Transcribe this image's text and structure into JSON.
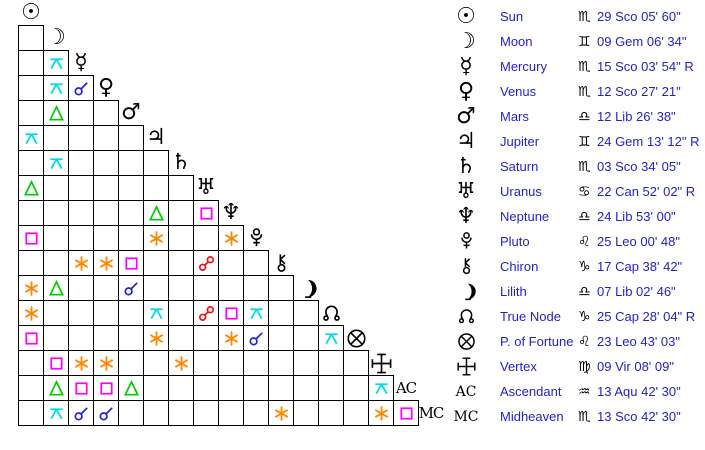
{
  "colors": {
    "link_text": "#2222cc",
    "glyph": "#000000",
    "grid_line": "#000000",
    "background": "#ffffff",
    "aspects": {
      "conjunction": "#2222dd",
      "sextile": "#ff8800",
      "square": "#ff00ff",
      "trine": "#00cc00",
      "opposition": "#ee1111",
      "quincunx": "#00dde8"
    }
  },
  "grid": {
    "rows": [
      {
        "glyph": "sun",
        "label": "Sun",
        "aspects": []
      },
      {
        "glyph": "moon",
        "label": "Moon",
        "aspects": [
          ""
        ]
      },
      {
        "glyph": "mercury",
        "label": "Mercury",
        "aspects": [
          "",
          "quincunx"
        ]
      },
      {
        "glyph": "venus",
        "label": "Venus",
        "aspects": [
          "",
          "quincunx",
          "conjunction"
        ]
      },
      {
        "glyph": "mars",
        "label": "Mars",
        "aspects": [
          "",
          "trine",
          "",
          ""
        ]
      },
      {
        "glyph": "jupiter",
        "label": "Jupiter",
        "aspects": [
          "quincunx",
          "",
          "",
          "",
          ""
        ]
      },
      {
        "glyph": "saturn",
        "label": "Saturn",
        "aspects": [
          "",
          "quincunx",
          "",
          "",
          "",
          ""
        ]
      },
      {
        "glyph": "uranus",
        "label": "Uranus",
        "aspects": [
          "trine",
          "",
          "",
          "",
          "",
          "",
          ""
        ]
      },
      {
        "glyph": "neptune",
        "label": "Neptune",
        "aspects": [
          "",
          "",
          "",
          "",
          "",
          "trine",
          "",
          "square"
        ]
      },
      {
        "glyph": "pluto",
        "label": "Pluto",
        "aspects": [
          "square",
          "",
          "",
          "",
          "",
          "sextile",
          "",
          "",
          "sextile"
        ]
      },
      {
        "glyph": "chiron",
        "label": "Chiron",
        "aspects": [
          "",
          "",
          "sextile",
          "sextile",
          "square",
          "",
          "",
          "opposition",
          "",
          ""
        ]
      },
      {
        "glyph": "lilith",
        "label": "Lilith",
        "aspects": [
          "sextile",
          "trine",
          "",
          "",
          "conjunction",
          "",
          "",
          "",
          "",
          "",
          ""
        ]
      },
      {
        "glyph": "truenode",
        "label": "True Node",
        "aspects": [
          "sextile",
          "",
          "",
          "",
          "",
          "quincunx",
          "",
          "opposition",
          "square",
          "quincunx",
          "",
          ""
        ]
      },
      {
        "glyph": "fortune",
        "label": "P. of Fortune",
        "aspects": [
          "square",
          "",
          "",
          "",
          "",
          "sextile",
          "",
          "",
          "sextile",
          "conjunction",
          "",
          "",
          "quincunx"
        ]
      },
      {
        "glyph": "vertex",
        "label": "Vertex",
        "aspects": [
          "",
          "square",
          "sextile",
          "sextile",
          "",
          "",
          "sextile",
          "",
          "",
          "",
          "",
          "",
          "",
          ""
        ]
      },
      {
        "glyph": "ac",
        "label": "Ascendant",
        "aspects": [
          "",
          "trine",
          "square",
          "square",
          "trine",
          "",
          "",
          "",
          "",
          "",
          "",
          "",
          "",
          "",
          "quincunx"
        ]
      },
      {
        "glyph": "mc",
        "label": "Midheaven",
        "aspects": [
          "",
          "quincunx",
          "conjunction",
          "conjunction",
          "",
          "",
          "",
          "",
          "",
          "",
          "sextile",
          "",
          "",
          "",
          "sextile",
          "square"
        ]
      }
    ]
  },
  "legend": {
    "rows": [
      {
        "glyph": "sun",
        "label": "Sun",
        "sign": "♏",
        "position": "29 Sco 05' 60\""
      },
      {
        "glyph": "moon",
        "label": "Moon",
        "sign": "♊",
        "position": "09 Gem 06' 34\""
      },
      {
        "glyph": "mercury",
        "label": "Mercury",
        "sign": "♏",
        "position": "15 Sco 03' 54\" R"
      },
      {
        "glyph": "venus",
        "label": "Venus",
        "sign": "♏",
        "position": "12 Sco 27' 21\""
      },
      {
        "glyph": "mars",
        "label": "Mars",
        "sign": "♎",
        "position": "12 Lib 26' 38\""
      },
      {
        "glyph": "jupiter",
        "label": "Jupiter",
        "sign": "♊",
        "position": "24 Gem 13' 12\" R"
      },
      {
        "glyph": "saturn",
        "label": "Saturn",
        "sign": "♏",
        "position": "03 Sco 34' 05\""
      },
      {
        "glyph": "uranus",
        "label": "Uranus",
        "sign": "♋",
        "position": "22 Can 52' 02\" R"
      },
      {
        "glyph": "neptune",
        "label": "Neptune",
        "sign": "♎",
        "position": "24 Lib 53' 00\""
      },
      {
        "glyph": "pluto",
        "label": "Pluto",
        "sign": "♌",
        "position": "25 Leo 00' 48\""
      },
      {
        "glyph": "chiron",
        "label": "Chiron",
        "sign": "♑",
        "position": "17 Cap 38' 42\""
      },
      {
        "glyph": "lilith",
        "label": "Lilith",
        "sign": "♎",
        "position": "07 Lib 02' 46\""
      },
      {
        "glyph": "truenode",
        "label": "True Node",
        "sign": "♑",
        "position": "25 Cap 28' 04\" R"
      },
      {
        "glyph": "fortune",
        "label": "P. of Fortune",
        "sign": "♌",
        "position": "23 Leo 43' 03\""
      },
      {
        "glyph": "vertex",
        "label": "Vertex",
        "sign": "♍",
        "position": "09 Vir 08' 09\""
      },
      {
        "glyph": "ac",
        "label": "Ascendant",
        "sign": "♒",
        "position": "13 Aqu 42' 30\""
      },
      {
        "glyph": "mc",
        "label": "Midheaven",
        "sign": "♏",
        "position": "13 Sco 42' 30\""
      }
    ]
  }
}
